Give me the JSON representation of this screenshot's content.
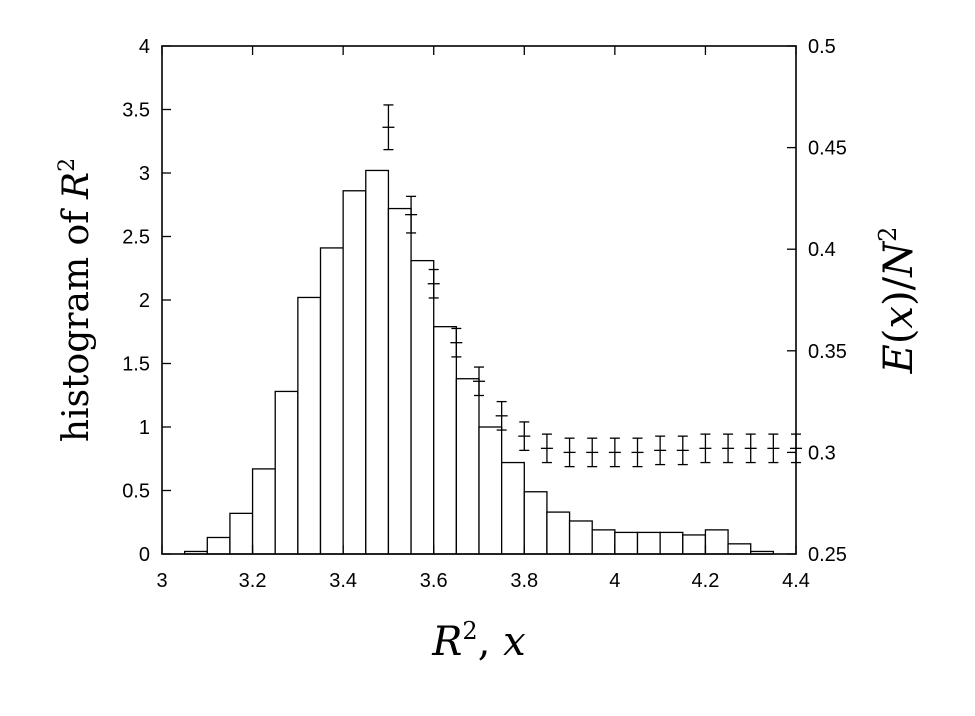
{
  "chart_data": {
    "type": "bar",
    "title": "",
    "xlabel": {
      "base": "R",
      "sup": "2",
      "tail": ", ",
      "var": "x"
    },
    "ylabel_left": {
      "text": "histogram of ",
      "var": "R",
      "sup": "2"
    },
    "ylabel_right": {
      "var1": "E",
      "p_open": "(",
      "var2": "x",
      "p_close": ")",
      "slash": "/",
      "var3": "N",
      "sup": "2"
    },
    "xlim": [
      3,
      4.4
    ],
    "ylim_left": [
      0,
      4
    ],
    "ylim_right": [
      0.25,
      0.5
    ],
    "x_ticks": [
      "3",
      "3.2",
      "3.4",
      "3.6",
      "3.8",
      "4",
      "4.2",
      "4.4"
    ],
    "y_left_ticks": [
      "0",
      "0.5",
      "1",
      "1.5",
      "2",
      "2.5",
      "3",
      "3.5",
      "4"
    ],
    "y_right_ticks": [
      "0.25",
      "0.3",
      "0.35",
      "0.4",
      "0.45",
      "0.5"
    ],
    "histogram": {
      "bin_edges": [
        3.05,
        3.1,
        3.15,
        3.2,
        3.25,
        3.3,
        3.35,
        3.4,
        3.45,
        3.5,
        3.55,
        3.6,
        3.65,
        3.7,
        3.75,
        3.8,
        3.85,
        3.9,
        3.95,
        4.0,
        4.05,
        4.1,
        4.15,
        4.2,
        4.25,
        4.3,
        4.35
      ],
      "values": [
        0.02,
        0.13,
        0.32,
        0.67,
        1.28,
        2.02,
        2.41,
        2.86,
        3.02,
        2.72,
        2.31,
        1.79,
        1.38,
        1.0,
        0.72,
        0.49,
        0.33,
        0.26,
        0.19,
        0.17,
        0.17,
        0.17,
        0.15,
        0.19,
        0.08,
        0.02
      ]
    },
    "energy_series": {
      "axis": "right",
      "x": [
        3.5,
        3.55,
        3.6,
        3.65,
        3.7,
        3.75,
        3.8,
        3.85,
        3.9,
        3.95,
        4.0,
        4.05,
        4.1,
        4.15,
        4.2,
        4.25,
        4.3,
        4.35,
        4.4
      ],
      "y": [
        0.46,
        0.417,
        0.383,
        0.354,
        0.335,
        0.318,
        0.308,
        0.302,
        0.3,
        0.3,
        0.3,
        0.3,
        0.301,
        0.301,
        0.302,
        0.302,
        0.302,
        0.302,
        0.302
      ],
      "err": [
        0.011,
        0.009,
        0.007,
        0.007,
        0.007,
        0.007,
        0.007,
        0.007,
        0.007,
        0.007,
        0.007,
        0.007,
        0.007,
        0.007,
        0.007,
        0.007,
        0.007,
        0.007,
        0.007
      ]
    },
    "grid": false,
    "colors": {
      "bar_fill": "#ffffff",
      "stroke": "#000000"
    }
  }
}
